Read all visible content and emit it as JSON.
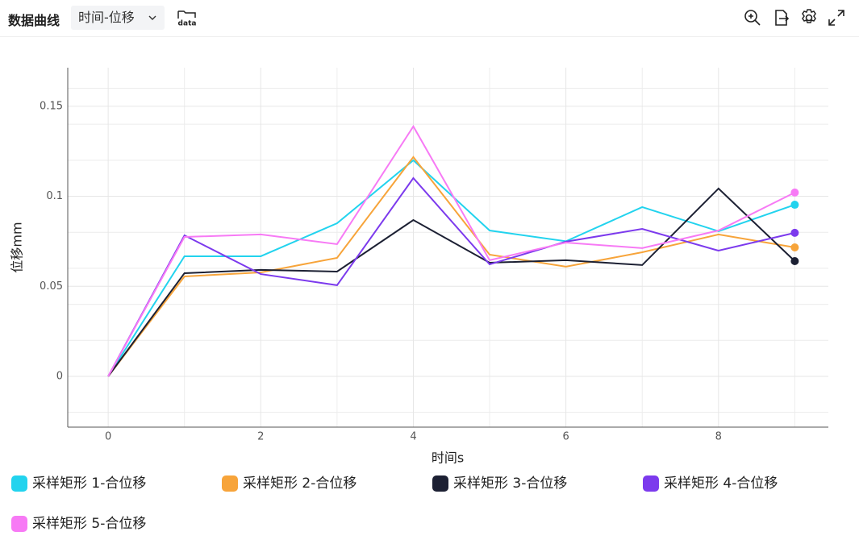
{
  "header": {
    "title": "数据曲线",
    "dropdown": "时间-位移",
    "export_label": "data"
  },
  "chart_data": {
    "type": "line",
    "x_label": "时间s",
    "y_label": "位移mm",
    "x": [
      0,
      1,
      2,
      3,
      4,
      5,
      6,
      7,
      8,
      9
    ],
    "xlim": [
      -0.53,
      9.44
    ],
    "xticks": [
      0,
      2,
      4,
      6,
      8
    ],
    "xminorticks": [
      1,
      3,
      5,
      7,
      9
    ],
    "ylim": [
      -0.0282,
      0.1714
    ],
    "yticks": [
      0,
      0.05,
      0.1,
      0.15
    ],
    "yminorticks": [
      -0.02,
      0.02,
      0.04,
      0.06,
      0.08,
      0.12,
      0.14,
      0.16
    ],
    "grid": true,
    "series": [
      {
        "name": "采样矩形 1-合位移",
        "color": "#22d3ee",
        "values": [
          0,
          0.0667,
          0.0667,
          0.085,
          0.12,
          0.081,
          0.075,
          0.094,
          0.0806,
          0.0953
        ]
      },
      {
        "name": "采样矩形 2-合位移",
        "color": "#f7a43a",
        "values": [
          0,
          0.0555,
          0.0577,
          0.0658,
          0.1218,
          0.0676,
          0.0609,
          0.0689,
          0.0788,
          0.0716
        ]
      },
      {
        "name": "采样矩形 3-合位移",
        "color": "#1c2033",
        "values": [
          0,
          0.0573,
          0.0591,
          0.0582,
          0.0868,
          0.0631,
          0.0645,
          0.0618,
          0.1043,
          0.064
        ]
      },
      {
        "name": "采样矩形 4-合位移",
        "color": "#7c3aed",
        "values": [
          0,
          0.0783,
          0.0568,
          0.0506,
          0.1101,
          0.0622,
          0.0748,
          0.0819,
          0.0698,
          0.0797
        ]
      },
      {
        "name": "采样矩形 5-合位移",
        "color": "#f77af5",
        "values": [
          0,
          0.0774,
          0.0788,
          0.0734,
          0.1388,
          0.0645,
          0.0743,
          0.0712,
          0.081,
          0.1021
        ]
      }
    ]
  }
}
